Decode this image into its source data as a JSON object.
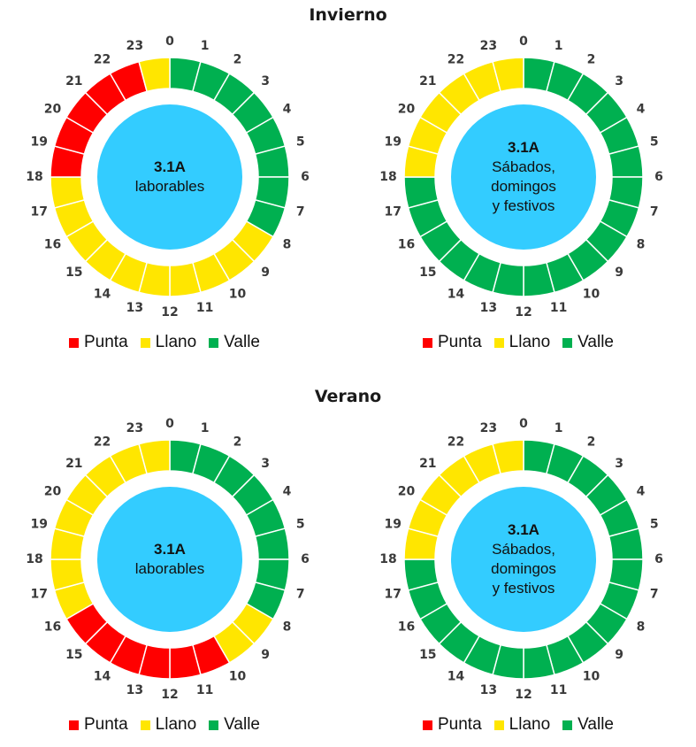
{
  "titles": {
    "winter": "Invierno",
    "summer": "Verano"
  },
  "colors": {
    "Punta": "#ff0000",
    "Llano": "#ffe600",
    "Valle": "#00b050",
    "center": "#33ccff"
  },
  "legend": [
    {
      "name": "Punta",
      "label": "Punta"
    },
    {
      "name": "Llano",
      "label": "Llano"
    },
    {
      "name": "Valle",
      "label": "Valle"
    }
  ],
  "chart_data": [
    {
      "type": "donut",
      "season": "Invierno",
      "center_code": "3.1A",
      "center_text": "laborables",
      "hours": [
        "0",
        "1",
        "2",
        "3",
        "4",
        "5",
        "6",
        "7",
        "8",
        "9",
        "10",
        "11",
        "12",
        "13",
        "14",
        "15",
        "16",
        "17",
        "18",
        "19",
        "20",
        "21",
        "22",
        "23"
      ],
      "periods": [
        "Valle",
        "Valle",
        "Valle",
        "Valle",
        "Valle",
        "Valle",
        "Valle",
        "Valle",
        "Llano",
        "Llano",
        "Llano",
        "Llano",
        "Llano",
        "Llano",
        "Llano",
        "Llano",
        "Llano",
        "Llano",
        "Punta",
        "Punta",
        "Punta",
        "Punta",
        "Punta",
        "Llano"
      ]
    },
    {
      "type": "donut",
      "season": "Invierno",
      "center_code": "3.1A",
      "center_text": "Sábados,\ndomingos\ny festivos",
      "hours": [
        "0",
        "1",
        "2",
        "3",
        "4",
        "5",
        "6",
        "7",
        "8",
        "9",
        "10",
        "11",
        "12",
        "13",
        "14",
        "15",
        "16",
        "17",
        "18",
        "19",
        "20",
        "21",
        "22",
        "23"
      ],
      "periods": [
        "Valle",
        "Valle",
        "Valle",
        "Valle",
        "Valle",
        "Valle",
        "Valle",
        "Valle",
        "Valle",
        "Valle",
        "Valle",
        "Valle",
        "Valle",
        "Valle",
        "Valle",
        "Valle",
        "Valle",
        "Valle",
        "Llano",
        "Llano",
        "Llano",
        "Llano",
        "Llano",
        "Llano"
      ]
    },
    {
      "type": "donut",
      "season": "Verano",
      "center_code": "3.1A",
      "center_text": "laborables",
      "hours": [
        "0",
        "1",
        "2",
        "3",
        "4",
        "5",
        "6",
        "7",
        "8",
        "9",
        "10",
        "11",
        "12",
        "13",
        "14",
        "15",
        "16",
        "17",
        "18",
        "19",
        "20",
        "21",
        "22",
        "23"
      ],
      "periods": [
        "Valle",
        "Valle",
        "Valle",
        "Valle",
        "Valle",
        "Valle",
        "Valle",
        "Valle",
        "Llano",
        "Llano",
        "Punta",
        "Punta",
        "Punta",
        "Punta",
        "Punta",
        "Punta",
        "Llano",
        "Llano",
        "Llano",
        "Llano",
        "Llano",
        "Llano",
        "Llano",
        "Llano"
      ]
    },
    {
      "type": "donut",
      "season": "Verano",
      "center_code": "3.1A",
      "center_text": "Sábados,\ndomingos\ny festivos",
      "hours": [
        "0",
        "1",
        "2",
        "3",
        "4",
        "5",
        "6",
        "7",
        "8",
        "9",
        "10",
        "11",
        "12",
        "13",
        "14",
        "15",
        "16",
        "17",
        "18",
        "19",
        "20",
        "21",
        "22",
        "23"
      ],
      "periods": [
        "Valle",
        "Valle",
        "Valle",
        "Valle",
        "Valle",
        "Valle",
        "Valle",
        "Valle",
        "Valle",
        "Valle",
        "Valle",
        "Valle",
        "Valle",
        "Valle",
        "Valle",
        "Valle",
        "Valle",
        "Valle",
        "Llano",
        "Llano",
        "Llano",
        "Llano",
        "Llano",
        "Llano"
      ]
    }
  ]
}
